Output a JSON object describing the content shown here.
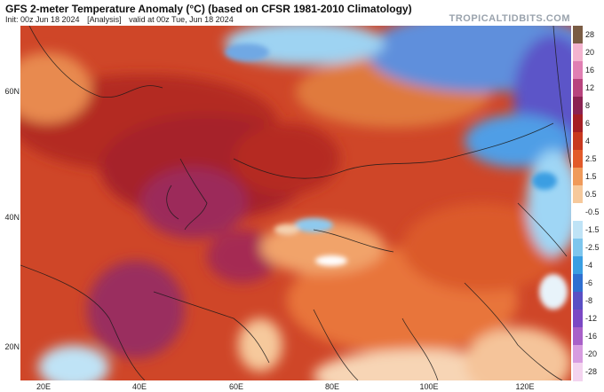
{
  "header": {
    "title": "GFS 2-meter Temperature Anomaly (°C) (based on CFSR 1981-2010 Climatology)",
    "init": "Init: 00z Jun 18 2024",
    "analysis": "[Analysis]",
    "valid": "valid at 00z Tue, Jun 18 2024",
    "brand": "TROPICALTIDBITS.COM"
  },
  "map": {
    "lat_labels": [
      "60N",
      "40N",
      "20N"
    ],
    "lon_labels": [
      "20E",
      "40E",
      "60E",
      "80E",
      "100E",
      "120E"
    ]
  },
  "legend": {
    "labels": [
      "28",
      "20",
      "16",
      "12",
      "8",
      "6",
      "4",
      "2.5",
      "1.5",
      "0.5",
      "-0.5",
      "-1.5",
      "-2.5",
      "-4",
      "-6",
      "-8",
      "-12",
      "-16",
      "-20",
      "-28"
    ],
    "colors": [
      "#7a5c44",
      "#f3b3cf",
      "#e07fb3",
      "#b8447e",
      "#8b2252",
      "#a51e24",
      "#c8391f",
      "#e25a2a",
      "#f09a5a",
      "#f6c99c",
      "#ffffff",
      "#bfe3f6",
      "#7ec6ee",
      "#3a9ee2",
      "#2f6fd0",
      "#5a4fc4",
      "#7b48c4",
      "#a860c8",
      "#d79ce0",
      "#f3d4ef"
    ]
  }
}
